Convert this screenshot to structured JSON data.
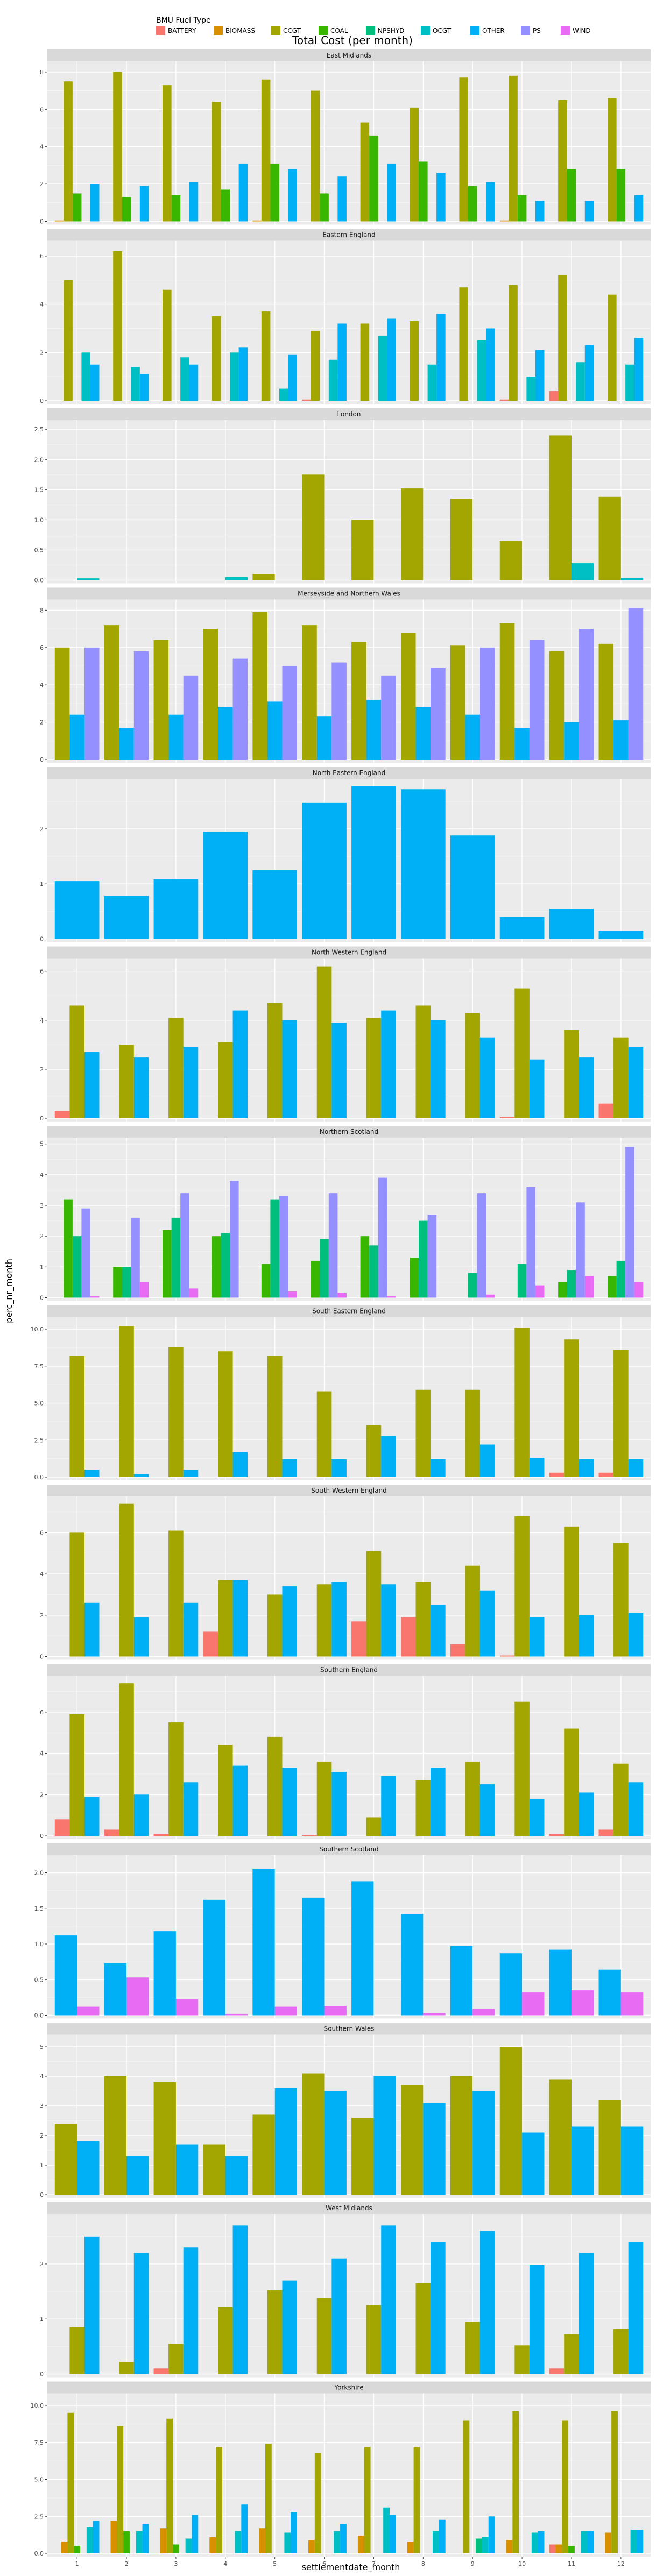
{
  "chart_data": {
    "type": "bar",
    "title": "Total Cost (per month)",
    "xlabel": "settlementdate_month",
    "ylabel": "perc_nr_month",
    "legend": {
      "title": "BMU Fuel Type",
      "placement": "top",
      "entries": [
        {
          "name": "BATTERY",
          "color": "#F8766D"
        },
        {
          "name": "BIOMASS",
          "color": "#D89000"
        },
        {
          "name": "CCGT",
          "color": "#A3A500"
        },
        {
          "name": "COAL",
          "color": "#39B600"
        },
        {
          "name": "NPSHYD",
          "color": "#00BF7D"
        },
        {
          "name": "OCGT",
          "color": "#00BFC4"
        },
        {
          "name": "OTHER",
          "color": "#00B0F6"
        },
        {
          "name": "PS",
          "color": "#9590FF"
        },
        {
          "name": "WIND",
          "color": "#E76BF3"
        }
      ]
    },
    "categories": [
      "1",
      "2",
      "3",
      "4",
      "5",
      "6",
      "7",
      "8",
      "9",
      "10",
      "11",
      "12"
    ],
    "grid": true,
    "panels": [
      {
        "title": "East Midlands",
        "ylim": [
          0,
          8.4
        ],
        "yticks": [
          "0",
          "2",
          "4",
          "6",
          "8"
        ],
        "ytick_values": [
          0,
          2,
          4,
          6,
          8
        ],
        "series": {
          "BIOMASS": [
            0.05,
            0,
            0,
            0,
            0.05,
            0,
            0,
            0,
            0,
            0.05,
            0,
            0
          ],
          "CCGT": [
            7.5,
            8.0,
            7.3,
            6.4,
            7.6,
            7.0,
            5.3,
            6.1,
            7.7,
            7.8,
            6.5,
            6.6
          ],
          "COAL": [
            1.5,
            1.3,
            1.4,
            1.7,
            3.1,
            1.5,
            4.6,
            3.2,
            1.9,
            1.4,
            2.8,
            2.8
          ],
          "OCGT": [
            0,
            0,
            0,
            0,
            0,
            0,
            0,
            0,
            0,
            0,
            0,
            0
          ],
          "OTHER": [
            2.0,
            1.9,
            2.1,
            3.1,
            2.8,
            2.4,
            3.1,
            2.6,
            2.1,
            1.1,
            1.1,
            1.4
          ]
        }
      },
      {
        "title": "Eastern England",
        "ylim": [
          0,
          6.5
        ],
        "yticks": [
          "0",
          "2",
          "4",
          "6"
        ],
        "ytick_values": [
          0,
          2,
          4,
          6
        ],
        "series": {
          "BATTERY": [
            0,
            0,
            0,
            0,
            0,
            0.05,
            0,
            0,
            0,
            0.05,
            0.4,
            0
          ],
          "CCGT": [
            5.0,
            6.2,
            4.6,
            3.5,
            3.7,
            2.9,
            3.2,
            3.3,
            4.7,
            4.8,
            5.2,
            4.4
          ],
          "COAL": [
            0,
            0,
            0,
            0,
            0,
            0,
            0,
            0,
            0,
            0,
            0,
            0
          ],
          "OCGT": [
            2.0,
            1.4,
            1.8,
            2.0,
            0.5,
            1.7,
            2.7,
            1.5,
            2.5,
            1.0,
            1.6,
            1.5
          ],
          "OTHER": [
            1.5,
            1.1,
            1.5,
            2.2,
            1.9,
            3.2,
            3.4,
            3.6,
            3.0,
            2.1,
            2.3,
            2.6
          ]
        }
      },
      {
        "title": "London",
        "ylim": [
          0,
          2.6
        ],
        "yticks": [
          "0.0",
          "0.5",
          "1.0",
          "1.5",
          "2.0",
          "2.5"
        ],
        "ytick_values": [
          0,
          0.5,
          1,
          1.5,
          2,
          2.5
        ],
        "series": {
          "CCGT": [
            0,
            0,
            0,
            0,
            0.1,
            1.75,
            1.0,
            1.52,
            1.35,
            0.65,
            2.4,
            1.38
          ],
          "OCGT": [
            0.03,
            0,
            0,
            0.05,
            0,
            0,
            0,
            0,
            0,
            0,
            0.28,
            0.04
          ]
        }
      },
      {
        "title": "Merseyside and Northern Wales",
        "ylim": [
          0,
          8.4
        ],
        "yticks": [
          "0",
          "2",
          "4",
          "6",
          "8"
        ],
        "ytick_values": [
          0,
          2,
          4,
          6,
          8
        ],
        "series": {
          "CCGT": [
            6.0,
            7.2,
            6.4,
            7.0,
            7.9,
            7.2,
            6.3,
            6.8,
            6.1,
            7.3,
            5.8,
            6.2
          ],
          "OTHER": [
            2.4,
            1.7,
            2.4,
            2.8,
            3.1,
            2.3,
            3.2,
            2.8,
            2.4,
            1.7,
            2.0,
            2.1
          ],
          "PS": [
            6.0,
            5.8,
            4.5,
            5.4,
            5.0,
            5.2,
            4.5,
            4.9,
            6.0,
            6.4,
            7.0,
            8.1
          ]
        }
      },
      {
        "title": "North Eastern England",
        "ylim": [
          0,
          2.85
        ],
        "yticks": [
          "0",
          "1",
          "2"
        ],
        "ytick_values": [
          0,
          1,
          2
        ],
        "series": {
          "OTHER": [
            1.05,
            0.78,
            1.08,
            1.95,
            1.25,
            2.48,
            2.78,
            2.72,
            1.88,
            0.4,
            0.55,
            0.15
          ]
        }
      },
      {
        "title": "North Western England",
        "ylim": [
          0,
          6.4
        ],
        "yticks": [
          "0",
          "2",
          "4",
          "6"
        ],
        "ytick_values": [
          0,
          2,
          4,
          6
        ],
        "series": {
          "BATTERY": [
            0.3,
            0,
            0,
            0,
            0,
            0,
            0,
            0,
            0,
            0.05,
            0,
            0.6
          ],
          "CCGT": [
            4.6,
            3.0,
            4.1,
            3.1,
            4.7,
            6.2,
            4.1,
            4.6,
            4.3,
            5.3,
            3.6,
            3.3
          ],
          "OTHER": [
            2.7,
            2.5,
            2.9,
            4.4,
            4.0,
            3.9,
            4.4,
            4.0,
            3.3,
            2.4,
            2.5,
            2.9
          ]
        }
      },
      {
        "title": "Northern Scotland",
        "ylim": [
          0,
          5.1
        ],
        "yticks": [
          "0",
          "1",
          "2",
          "3",
          "4",
          "5"
        ],
        "ytick_values": [
          0,
          1,
          2,
          3,
          4,
          5
        ],
        "series": {
          "CCGT": [
            0,
            0,
            0,
            0,
            0,
            0,
            0,
            0,
            0,
            0,
            0,
            0
          ],
          "COAL": [
            3.2,
            1.0,
            2.2,
            2.0,
            1.1,
            1.2,
            2.0,
            1.3,
            0,
            0,
            0.5,
            0.7
          ],
          "NPSHYD": [
            2.0,
            1.0,
            2.6,
            2.1,
            3.2,
            1.9,
            1.7,
            2.5,
            0.8,
            1.1,
            0.9,
            1.2
          ],
          "PS": [
            2.9,
            2.6,
            3.4,
            3.8,
            3.3,
            3.4,
            3.9,
            2.7,
            3.4,
            3.6,
            3.1,
            4.9
          ],
          "WIND": [
            0.05,
            0.5,
            0.3,
            0,
            0.2,
            0.15,
            0.05,
            0,
            0.1,
            0.4,
            0.7,
            0.5
          ]
        }
      },
      {
        "title": "South Eastern England",
        "ylim": [
          0,
          10.6
        ],
        "yticks": [
          "0.0",
          "2.5",
          "5.0",
          "7.5",
          "10.0"
        ],
        "ytick_values": [
          0,
          2.5,
          5,
          7.5,
          10
        ],
        "series": {
          "BATTERY": [
            0,
            0,
            0,
            0,
            0,
            0,
            0,
            0,
            0,
            0,
            0.3,
            0.3
          ],
          "CCGT": [
            8.2,
            10.2,
            8.8,
            8.5,
            8.2,
            5.8,
            3.5,
            5.9,
            5.9,
            10.1,
            9.3,
            8.6
          ],
          "OTHER": [
            0.5,
            0.2,
            0.5,
            1.7,
            1.2,
            1.2,
            2.8,
            1.2,
            2.2,
            1.3,
            1.2,
            1.2
          ]
        }
      },
      {
        "title": "South Western England",
        "ylim": [
          0,
          7.6
        ],
        "yticks": [
          "0",
          "2",
          "4",
          "6"
        ],
        "ytick_values": [
          0,
          2,
          4,
          6
        ],
        "series": {
          "BATTERY": [
            0,
            0,
            0,
            1.2,
            0,
            0,
            1.7,
            1.9,
            0.6,
            0.05,
            0,
            0
          ],
          "CCGT": [
            6.0,
            7.4,
            6.1,
            3.7,
            3.0,
            3.5,
            5.1,
            3.6,
            4.4,
            6.8,
            6.3,
            5.5
          ],
          "OTHER": [
            2.6,
            1.9,
            2.6,
            3.7,
            3.4,
            3.6,
            3.5,
            2.5,
            3.2,
            1.9,
            2.0,
            2.1
          ]
        }
      },
      {
        "title": "Southern England",
        "ylim": [
          0,
          7.6
        ],
        "yticks": [
          "0",
          "2",
          "4",
          "6"
        ],
        "ytick_values": [
          0,
          2,
          4,
          6
        ],
        "series": {
          "BATTERY": [
            0.8,
            0.3,
            0.1,
            0,
            0,
            0.05,
            0,
            0,
            0,
            0,
            0.1,
            0.3
          ],
          "CCGT": [
            5.9,
            7.4,
            5.5,
            4.4,
            4.8,
            3.6,
            0.9,
            2.7,
            3.6,
            6.5,
            5.2,
            3.5
          ],
          "OTHER": [
            1.9,
            2.0,
            2.6,
            3.4,
            3.3,
            3.1,
            2.9,
            3.3,
            2.5,
            1.8,
            2.1,
            2.6
          ]
        }
      },
      {
        "title": "Southern Scotland",
        "ylim": [
          0,
          2.2
        ],
        "yticks": [
          "0.0",
          "0.5",
          "1.0",
          "1.5",
          "2.0"
        ],
        "ytick_values": [
          0,
          0.5,
          1,
          1.5,
          2
        ],
        "series": {
          "OTHER": [
            1.12,
            0.73,
            1.18,
            1.62,
            2.05,
            1.65,
            1.88,
            1.42,
            0.97,
            0.87,
            0.92,
            0.64
          ],
          "WIND": [
            0.12,
            0.53,
            0.23,
            0.02,
            0.12,
            0.13,
            0,
            0.03,
            0.09,
            0.32,
            0.35,
            0.32
          ]
        }
      },
      {
        "title": "Southern Wales",
        "ylim": [
          0,
          5.3
        ],
        "yticks": [
          "0",
          "1",
          "2",
          "3",
          "4",
          "5"
        ],
        "ytick_values": [
          0,
          1,
          2,
          3,
          4,
          5
        ],
        "series": {
          "CCGT": [
            2.4,
            4.0,
            3.8,
            1.7,
            2.7,
            4.1,
            2.6,
            3.7,
            4.0,
            5.0,
            3.9,
            3.2
          ],
          "OTHER": [
            1.8,
            1.3,
            1.7,
            1.3,
            3.6,
            3.5,
            4.0,
            3.1,
            3.5,
            2.1,
            2.3,
            2.3
          ]
        }
      },
      {
        "title": "West Midlands",
        "ylim": [
          0,
          2.85
        ],
        "yticks": [
          "0",
          "1",
          "2"
        ],
        "ytick_values": [
          0,
          1,
          2
        ],
        "series": {
          "BATTERY": [
            0,
            0,
            0.1,
            0,
            0,
            0,
            0,
            0,
            0,
            0,
            0.1,
            0
          ],
          "CCGT": [
            0.85,
            0.22,
            0.55,
            1.22,
            1.52,
            1.38,
            1.25,
            1.65,
            0.95,
            0.52,
            0.72,
            0.82
          ],
          "OTHER": [
            2.5,
            2.2,
            2.3,
            2.7,
            1.7,
            2.1,
            2.7,
            2.4,
            2.6,
            1.98,
            2.2,
            2.4
          ]
        }
      },
      {
        "title": "Yorkshire",
        "ylim": [
          0,
          10.6
        ],
        "yticks": [
          "0.0",
          "2.5",
          "5.0",
          "7.5",
          "10.0"
        ],
        "ytick_values": [
          0,
          2.5,
          5,
          7.5,
          10
        ],
        "series": {
          "BATTERY": [
            0,
            0,
            0,
            0,
            0,
            0,
            0,
            0,
            0,
            0,
            0.6,
            0
          ],
          "BIOMASS": [
            0.8,
            2.2,
            1.7,
            1.1,
            1.7,
            0.9,
            1.2,
            0.8,
            0,
            0.9,
            0.6,
            1.4
          ],
          "CCGT": [
            9.5,
            8.6,
            9.1,
            7.2,
            7.4,
            6.8,
            7.2,
            7.2,
            9.0,
            9.6,
            9.0,
            9.6
          ],
          "COAL": [
            0.5,
            1.5,
            0.6,
            0,
            0,
            0,
            0,
            0,
            0,
            0,
            0.5,
            0
          ],
          "NPSHYD": [
            0,
            0,
            0,
            0,
            0,
            0,
            0,
            0,
            1.0,
            0,
            0,
            0
          ],
          "OCGT": [
            1.8,
            1.5,
            1.0,
            1.5,
            1.4,
            1.5,
            3.1,
            1.5,
            1.1,
            1.4,
            1.5,
            1.6
          ],
          "OTHER": [
            2.2,
            2.0,
            2.6,
            3.3,
            2.8,
            2.0,
            2.6,
            2.3,
            2.5,
            1.5,
            1.5,
            1.6
          ]
        }
      }
    ]
  }
}
